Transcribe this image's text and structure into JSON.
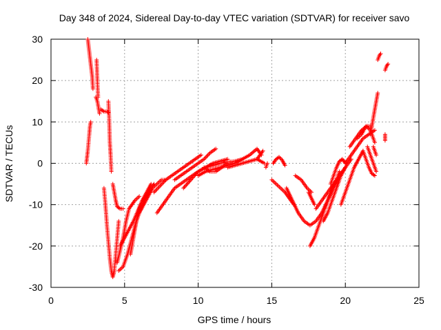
{
  "chart_data": {
    "type": "scatter",
    "title": "Day 348 of 2024, Sidereal Day-to-day VTEC variation (SDTVAR) for receiver savo",
    "xlabel": "GPS time / hours",
    "ylabel": "SDTVAR / TECUs",
    "xlim": [
      0,
      25
    ],
    "ylim": [
      -30,
      30
    ],
    "xticks": [
      0,
      5,
      10,
      15,
      20,
      25
    ],
    "yticks": [
      -30,
      -20,
      -10,
      0,
      10,
      20,
      30
    ],
    "grid": true,
    "marker": "+",
    "marker_color": "#ff0000",
    "tracks": [
      {
        "name": "track-a",
        "x": [
          2.4,
          2.5,
          2.6,
          2.65,
          2.7
        ],
        "y": [
          0,
          3,
          7,
          9,
          10
        ]
      },
      {
        "name": "track-b",
        "x": [
          2.5,
          2.6,
          2.7,
          2.8,
          2.85
        ],
        "y": [
          30,
          27,
          24,
          21,
          18
        ]
      },
      {
        "name": "track-c",
        "x": [
          3.05,
          3.15,
          3.25,
          3.3
        ],
        "y": [
          16,
          15,
          13,
          12
        ]
      },
      {
        "name": "track-d",
        "x": [
          3.1,
          3.15,
          3.2
        ],
        "y": [
          25,
          20,
          16
        ]
      },
      {
        "name": "track-e",
        "x": [
          3.4,
          3.6,
          3.8,
          3.9
        ],
        "y": [
          13,
          12.5,
          12.5,
          12.3
        ]
      },
      {
        "name": "track-f",
        "x": [
          3.9,
          3.95,
          4.0,
          4.05,
          4.1
        ],
        "y": [
          15,
          11,
          5,
          2,
          -2
        ]
      },
      {
        "name": "track-g",
        "x": [
          3.6,
          3.7,
          3.8,
          3.9,
          4.0,
          4.1,
          4.2,
          4.3,
          4.4,
          4.5,
          4.6
        ],
        "y": [
          -6,
          -10,
          -15,
          -19,
          -23,
          -26,
          -27.5,
          -26,
          -22,
          -18,
          -14
        ]
      },
      {
        "name": "track-h",
        "x": [
          4.2,
          4.3,
          4.4,
          4.5,
          4.7,
          4.9
        ],
        "y": [
          -5,
          -7,
          -9,
          -10.5,
          -11,
          -11
        ]
      },
      {
        "name": "track-i",
        "x": [
          4.5,
          4.7,
          4.9,
          5.1,
          5.3,
          5.5,
          5.7,
          6.0
        ],
        "y": [
          -24,
          -21,
          -18,
          -14,
          -11,
          -10,
          -9,
          -8
        ]
      },
      {
        "name": "track-j",
        "x": [
          4.6,
          4.9,
          5.2,
          5.5,
          5.8,
          6.1,
          6.4,
          6.7,
          7.0
        ],
        "y": [
          -26,
          -25,
          -22,
          -18,
          -14,
          -11,
          -8.5,
          -6.5,
          -5
        ]
      },
      {
        "name": "track-k",
        "x": [
          4.7,
          5.0,
          5.3,
          5.6,
          5.9,
          6.2,
          6.5,
          6.8
        ],
        "y": [
          -20,
          -18,
          -16,
          -14,
          -11.5,
          -9,
          -7,
          -5
        ]
      },
      {
        "name": "track-l",
        "x": [
          5.4,
          5.6,
          5.8,
          6.0,
          6.2,
          6.4
        ],
        "y": [
          -22,
          -18,
          -14,
          -11,
          -9,
          -8
        ]
      },
      {
        "name": "track-m",
        "x": [
          6.0,
          6.3,
          6.6,
          6.9,
          7.2,
          7.5,
          7.8
        ],
        "y": [
          -12,
          -10,
          -8,
          -6,
          -5,
          -4,
          -4
        ]
      },
      {
        "name": "track-n",
        "x": [
          7.2,
          7.6,
          8.0,
          8.4,
          8.8,
          9.2,
          9.6,
          10.0,
          10.5,
          11.0,
          11.5,
          12.0,
          12.5,
          13.0
        ],
        "y": [
          -12,
          -10,
          -8,
          -6,
          -5,
          -4,
          -3,
          -2,
          -1,
          -0.5,
          0,
          0.3,
          0.5,
          1
        ]
      },
      {
        "name": "track-o",
        "x": [
          7.0,
          7.4,
          7.8,
          8.2,
          8.6,
          9.0,
          9.4,
          9.8,
          10.2
        ],
        "y": [
          -7,
          -5.5,
          -4,
          -3,
          -2,
          -1,
          0,
          1,
          2
        ]
      },
      {
        "name": "track-p",
        "x": [
          8.4,
          8.8,
          9.2,
          9.6,
          10.0,
          10.4,
          10.8,
          11.2
        ],
        "y": [
          -4,
          -3,
          -2,
          -1,
          0,
          1,
          2.5,
          3.5
        ]
      },
      {
        "name": "track-q",
        "x": [
          9.0,
          9.5,
          10.0,
          10.5,
          11.0,
          11.5,
          12.0
        ],
        "y": [
          -6,
          -4,
          -2,
          -1,
          0,
          0.5,
          1
        ]
      },
      {
        "name": "track-r",
        "x": [
          10.0,
          10.5,
          11.0,
          11.5,
          12.0,
          12.5,
          13.0,
          13.5,
          14.0,
          14.3
        ],
        "y": [
          -3,
          -2,
          -1.5,
          -1,
          -0.5,
          0,
          1,
          2,
          3.5,
          2
        ]
      },
      {
        "name": "track-s",
        "x": [
          10.4,
          10.8,
          11.2,
          11.6,
          12.0
        ],
        "y": [
          -1,
          -2,
          -2,
          -1,
          0
        ]
      },
      {
        "name": "track-t",
        "x": [
          12.0,
          12.5,
          13.0,
          13.5,
          14.0,
          14.5
        ],
        "y": [
          -1,
          -0.5,
          0,
          0.5,
          1,
          0
        ]
      },
      {
        "name": "track-u",
        "x": [
          14.0,
          14.2,
          14.4
        ],
        "y": [
          1,
          2,
          3
        ]
      },
      {
        "name": "track-v",
        "x": [
          14.6,
          14.7
        ],
        "y": [
          -1,
          0
        ]
      },
      {
        "name": "track-w",
        "x": [
          15.1,
          15.3,
          15.5,
          15.7,
          15.9
        ],
        "y": [
          0,
          1,
          1.5,
          0.8,
          -0.5
        ]
      },
      {
        "name": "track-x",
        "x": [
          15.0,
          15.3,
          15.6,
          15.9,
          16.2,
          16.5
        ],
        "y": [
          -4,
          -5,
          -6,
          -7,
          -8.5,
          -10
        ]
      },
      {
        "name": "track-y",
        "x": [
          16.0,
          16.4,
          16.8,
          17.2,
          17.6,
          18.0,
          18.4,
          18.8,
          19.2,
          19.6,
          20.0
        ],
        "y": [
          -6,
          -9,
          -12,
          -14,
          -15,
          -14,
          -12,
          -9,
          -6,
          -3,
          -1
        ]
      },
      {
        "name": "track-z",
        "x": [
          16.6,
          17.0,
          17.4,
          17.7
        ],
        "y": [
          -3,
          -4,
          -6,
          -7
        ]
      },
      {
        "name": "track-aa",
        "x": [
          17.5,
          17.7,
          17.9
        ],
        "y": [
          -7,
          -8.5,
          -10
        ]
      },
      {
        "name": "track-ab",
        "x": [
          17.6,
          17.9,
          18.2,
          18.5,
          18.8,
          19.1,
          19.4,
          19.6
        ],
        "y": [
          -20,
          -18,
          -15,
          -12,
          -9,
          -6,
          -4,
          -2
        ]
      },
      {
        "name": "track-ac",
        "x": [
          18.0,
          18.4,
          18.8,
          19.2,
          19.6,
          20.0,
          20.4
        ],
        "y": [
          -11,
          -9,
          -7,
          -5,
          -3,
          -1,
          1
        ]
      },
      {
        "name": "track-ad",
        "x": [
          18.5,
          18.8,
          19.1,
          19.4,
          19.7,
          20.0
        ],
        "y": [
          -14,
          -12,
          -9,
          -6,
          -3,
          -1
        ]
      },
      {
        "name": "track-ae",
        "x": [
          19.0,
          19.2,
          19.4,
          19.6,
          19.8,
          20.0
        ],
        "y": [
          -5,
          -3,
          -1,
          0.5,
          1,
          0
        ]
      },
      {
        "name": "track-af",
        "x": [
          19.7,
          20.0,
          20.3,
          20.6,
          20.9,
          21.2
        ],
        "y": [
          -10,
          -7,
          -4,
          -1,
          1,
          3
        ]
      },
      {
        "name": "track-ag",
        "x": [
          20.0,
          20.4,
          20.8,
          21.2,
          21.6,
          22.0
        ],
        "y": [
          0,
          2,
          4,
          6,
          7,
          8
        ]
      },
      {
        "name": "track-ah",
        "x": [
          20.3,
          20.7,
          21.1,
          21.5,
          21.8
        ],
        "y": [
          4,
          6,
          8,
          9,
          9
        ]
      },
      {
        "name": "track-ai",
        "x": [
          20.8,
          21.1,
          21.4,
          21.7,
          22.0
        ],
        "y": [
          6,
          7,
          9,
          8,
          5
        ]
      },
      {
        "name": "track-aj",
        "x": [
          21.2,
          21.4,
          21.6,
          21.8,
          22.0
        ],
        "y": [
          3,
          1,
          -1,
          -2.5,
          -3
        ]
      },
      {
        "name": "track-ak",
        "x": [
          21.5,
          21.7,
          21.9,
          22.0,
          22.1
        ],
        "y": [
          4,
          2,
          0,
          -1,
          -2
        ]
      },
      {
        "name": "track-al",
        "x": [
          21.7,
          21.8,
          21.9,
          22.0,
          22.1,
          22.2
        ],
        "y": [
          7,
          9,
          11,
          13,
          15,
          17
        ]
      },
      {
        "name": "track-am",
        "x": [
          21.9,
          22.1
        ],
        "y": [
          4,
          2
        ]
      },
      {
        "name": "track-an",
        "x": [
          22.2,
          22.3,
          22.4
        ],
        "y": [
          25,
          26,
          26.5
        ]
      },
      {
        "name": "track-ao",
        "x": [
          22.7,
          22.8,
          22.9
        ],
        "y": [
          22.5,
          23.5,
          24
        ]
      },
      {
        "name": "track-ap",
        "x": [
          22.7,
          22.7
        ],
        "y": [
          5.5,
          7
        ]
      }
    ]
  }
}
